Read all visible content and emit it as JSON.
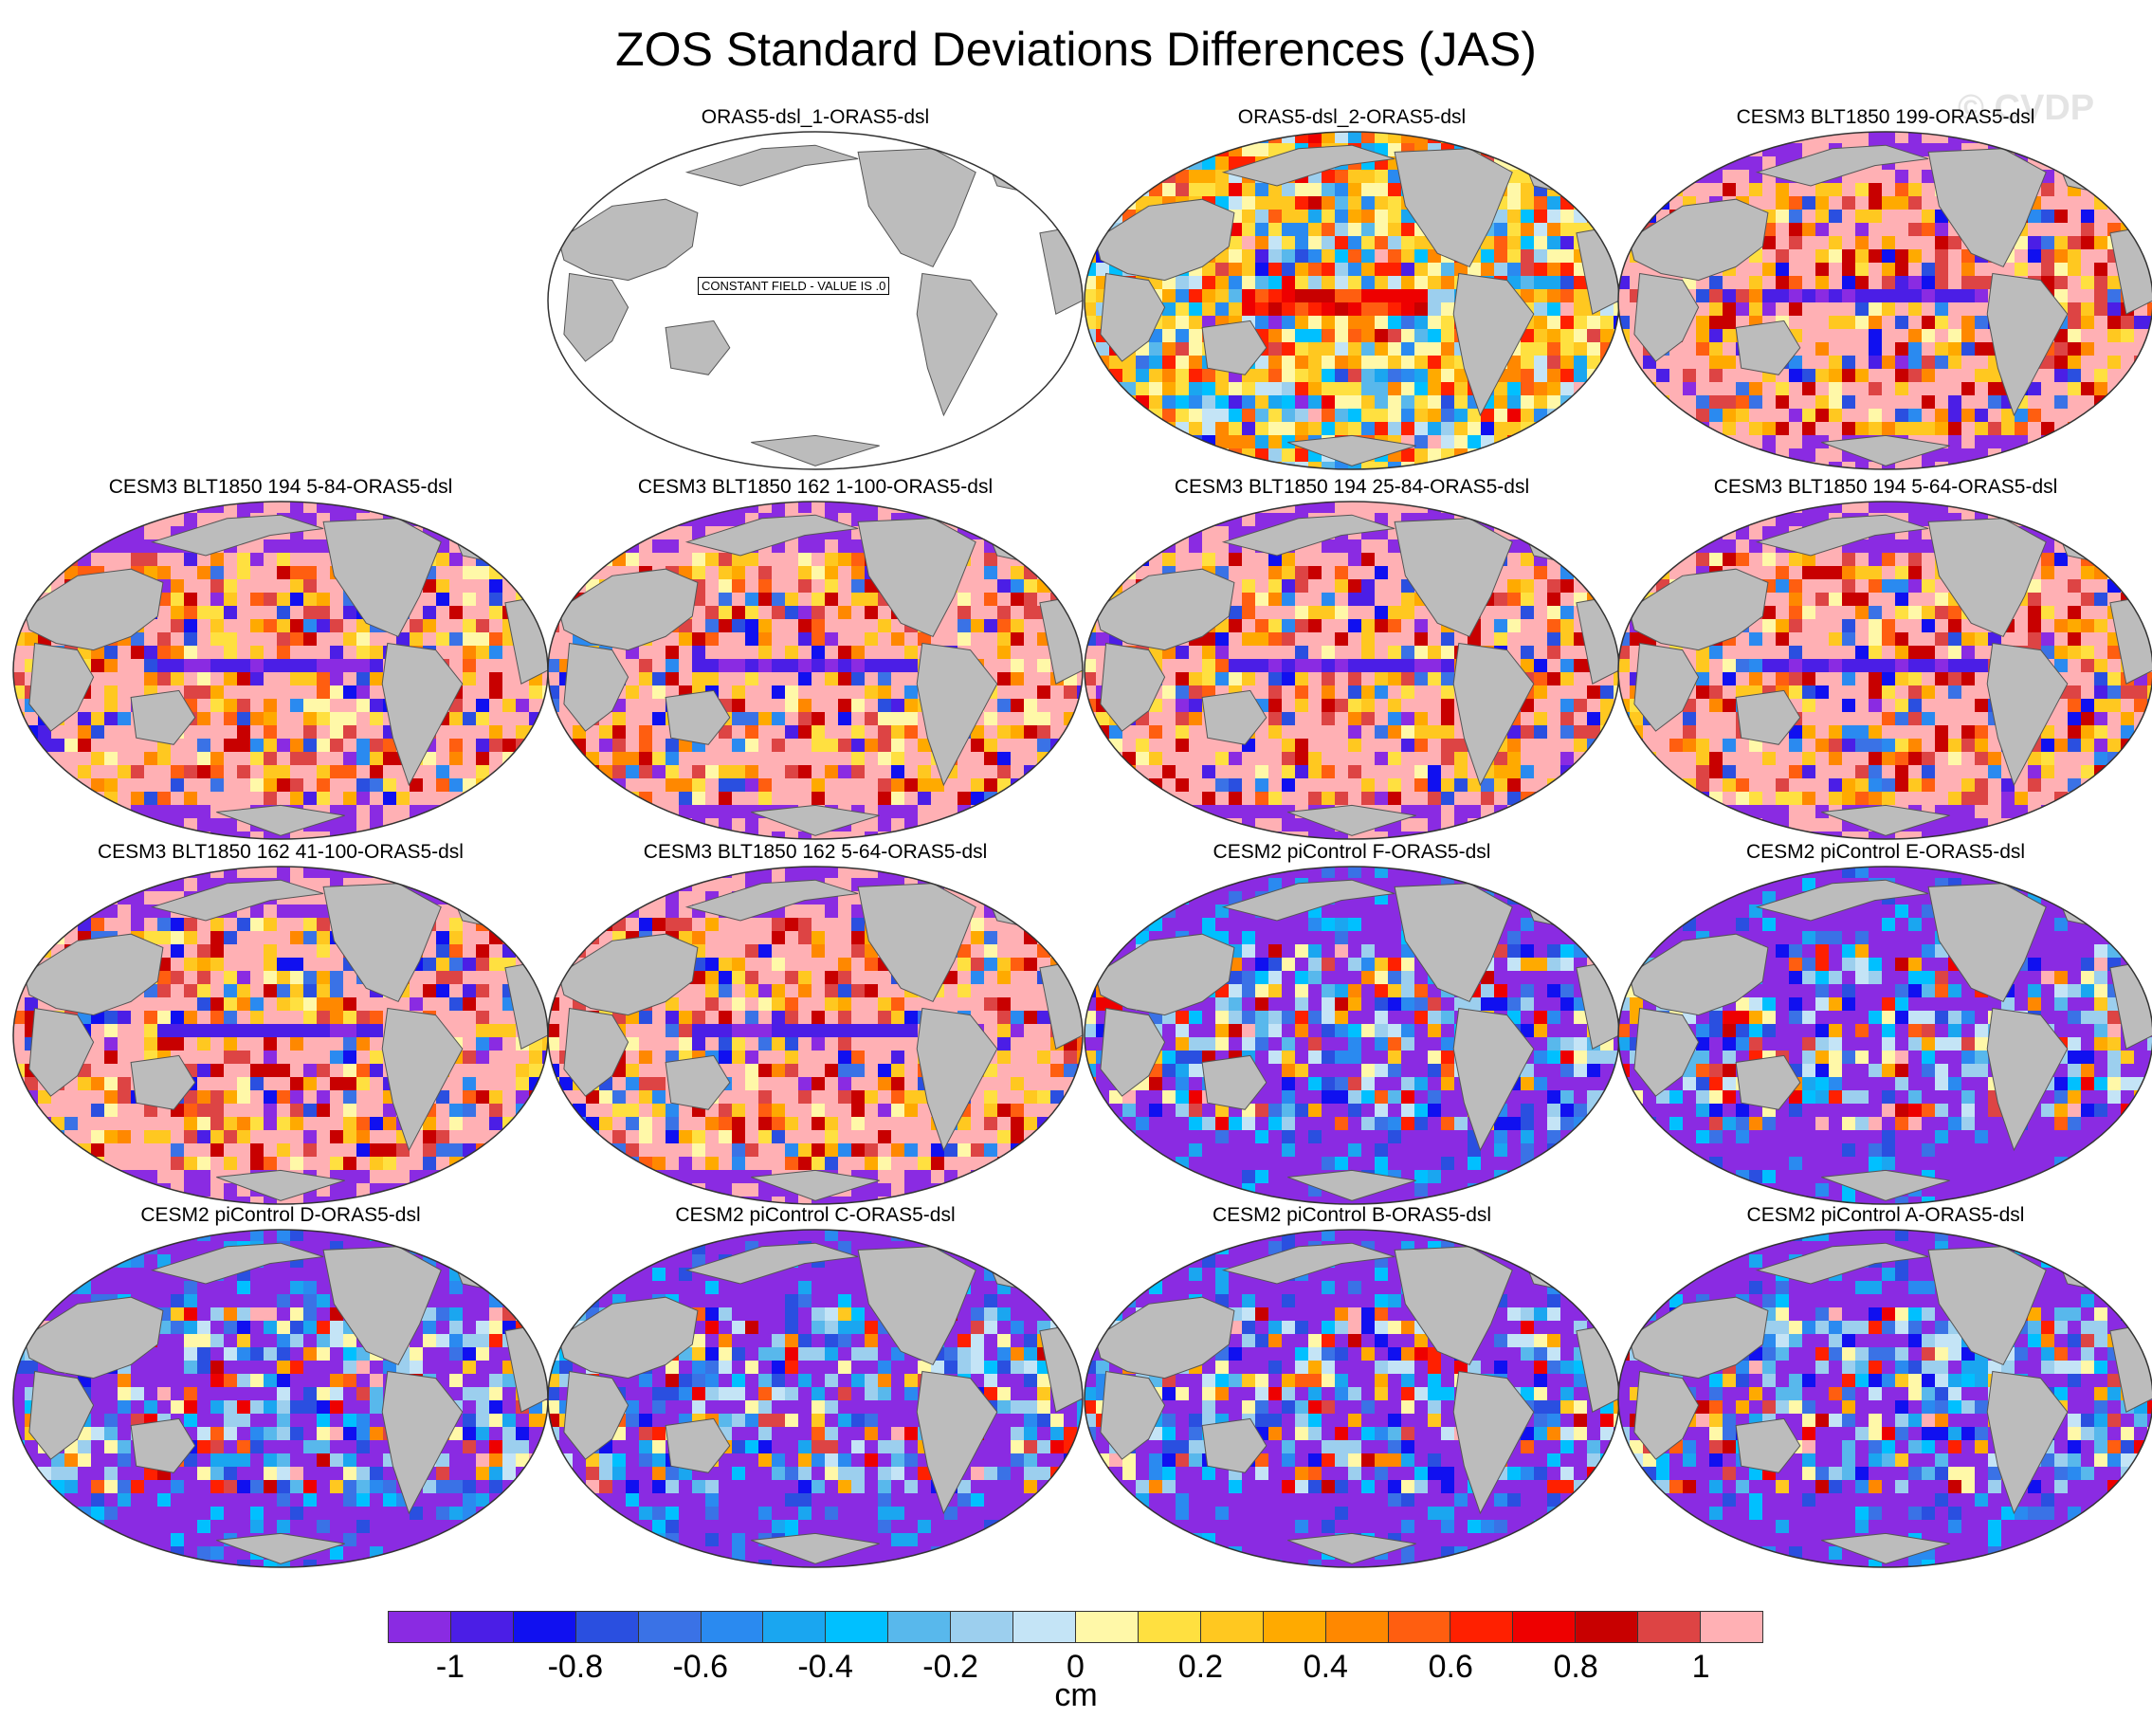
{
  "title": "ZOS Standard Deviations Differences (JAS)",
  "watermark": "© CVDP",
  "panels": [
    {
      "title": "ORAS5-dsl_1-ORAS5-dsl",
      "style": "constant",
      "label": "CONSTANT FIELD - VALUE IS .0"
    },
    {
      "title": "ORAS5-dsl_2-ORAS5-dsl",
      "style": "mixed"
    },
    {
      "title": "CESM3 BLT1850 199-ORAS5-dsl",
      "style": "positive"
    },
    {
      "title": "CESM3 BLT1850 194 5-84-ORAS5-dsl",
      "style": "positive"
    },
    {
      "title": "CESM3 BLT1850 162 1-100-ORAS5-dsl",
      "style": "positive"
    },
    {
      "title": "CESM3 BLT1850 194 25-84-ORAS5-dsl",
      "style": "positive"
    },
    {
      "title": "CESM3 BLT1850 194 5-64-ORAS5-dsl",
      "style": "positive"
    },
    {
      "title": "CESM3 BLT1850 162 41-100-ORAS5-dsl",
      "style": "positive"
    },
    {
      "title": "CESM3 BLT1850 162 5-64-ORAS5-dsl",
      "style": "positive"
    },
    {
      "title": "CESM2 piControl F-ORAS5-dsl",
      "style": "negative"
    },
    {
      "title": "CESM2 piControl E-ORAS5-dsl",
      "style": "negative"
    },
    {
      "title": "CESM2 piControl D-ORAS5-dsl",
      "style": "negative"
    },
    {
      "title": "CESM2 piControl C-ORAS5-dsl",
      "style": "negative"
    },
    {
      "title": "CESM2 piControl B-ORAS5-dsl",
      "style": "negative"
    },
    {
      "title": "CESM2 piControl A-ORAS5-dsl",
      "style": "negative"
    }
  ],
  "colorbar": {
    "units": "cm",
    "colors": [
      "#8a2be2",
      "#4b1ee6",
      "#1010f0",
      "#2a4fe0",
      "#3a72e6",
      "#2a8af0",
      "#1aa6f0",
      "#00c0ff",
      "#58b8ec",
      "#9ccfee",
      "#c4e4f6",
      "#fff8a8",
      "#ffe040",
      "#ffc820",
      "#ffaa00",
      "#ff8800",
      "#ff5e10",
      "#ff2000",
      "#ee0000",
      "#c80000",
      "#dd4444",
      "#ffb0b4"
    ],
    "tick_labels": [
      "-1",
      "-0.8",
      "-0.6",
      "-0.4",
      "-0.2",
      "0",
      "0.2",
      "0.4",
      "0.6",
      "0.8",
      "1"
    ]
  }
}
